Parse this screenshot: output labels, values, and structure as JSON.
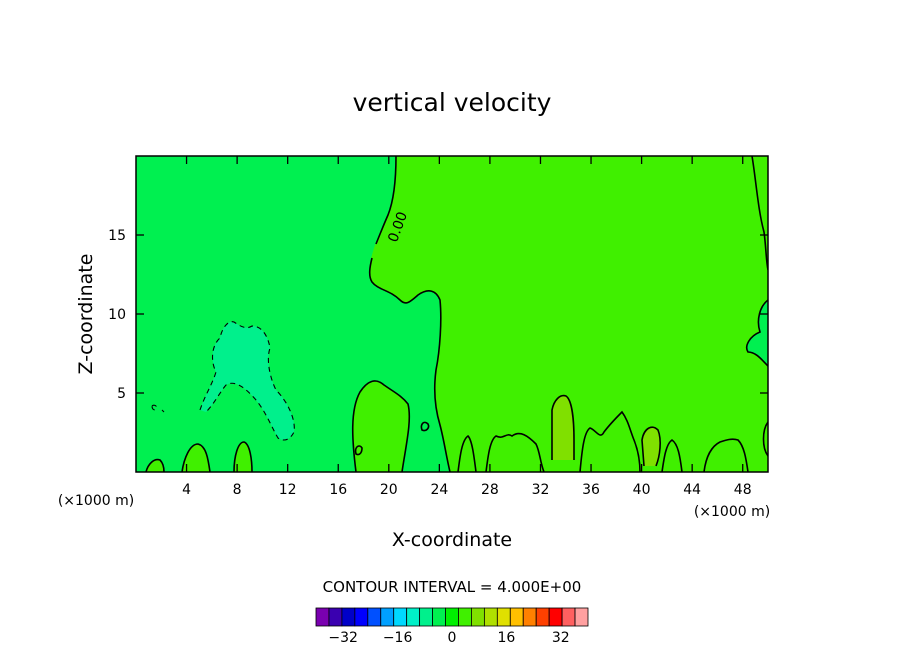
{
  "chart_data": {
    "type": "heatmap",
    "title": "vertical velocity",
    "xlabel": "X-coordinate",
    "ylabel": "Z-coordinate",
    "x_unit": "(×1000 m)",
    "xlim": [
      0,
      50
    ],
    "ylim": [
      0,
      20
    ],
    "x_ticks": [
      4,
      8,
      12,
      16,
      20,
      24,
      28,
      32,
      36,
      40,
      44,
      48
    ],
    "y_ticks": [
      5,
      10,
      15
    ],
    "contour_interval_text": "CONTOUR INTERVAL = 4.000E+00",
    "contour_label": "0.00",
    "colorbar": {
      "levels": [
        -40,
        -36,
        -32,
        -28,
        -24,
        -20,
        -16,
        -12,
        -8,
        -4,
        0,
        4,
        8,
        12,
        16,
        20,
        24,
        28,
        32,
        36,
        40
      ],
      "labels": [
        "-32",
        "-16",
        "0",
        "16",
        "32"
      ],
      "label_values": [
        -32,
        -16,
        0,
        16,
        32
      ],
      "colors": [
        "#7a00b0",
        "#3a00b0",
        "#0000c8",
        "#0000ff",
        "#0050ff",
        "#00a0ff",
        "#00d8ff",
        "#00f0c8",
        "#00f08c",
        "#00f050",
        "#00f000",
        "#40f000",
        "#80e000",
        "#b0e000",
        "#e0e000",
        "#ffc000",
        "#ff8000",
        "#ff4000",
        "#ff0000",
        "#ff6060",
        "#ffa0a0"
      ]
    },
    "regions": [
      {
        "name": "negative zone (-4 to 0)",
        "color": "#00f050",
        "x_range": [
          0,
          21
        ],
        "z_range": [
          0,
          20
        ]
      },
      {
        "name": "positive zone (0 to 4)",
        "color": "#40f000",
        "x_range": [
          21,
          50
        ],
        "z_range": [
          0,
          20
        ]
      },
      {
        "name": "negative pocket (-8 to -4)",
        "color": "#00f08c",
        "x_range": [
          5,
          13
        ],
        "z_range": [
          2,
          9.5
        ]
      },
      {
        "name": "positive cell (4 to 8)",
        "color": "#80e000",
        "x_range": [
          33,
          35
        ],
        "z_range": [
          1,
          4.8
        ]
      },
      {
        "name": "positive cell (4 to 8)",
        "color": "#80e000",
        "x_range": [
          40,
          42
        ],
        "z_range": [
          0.5,
          3
        ]
      }
    ]
  }
}
